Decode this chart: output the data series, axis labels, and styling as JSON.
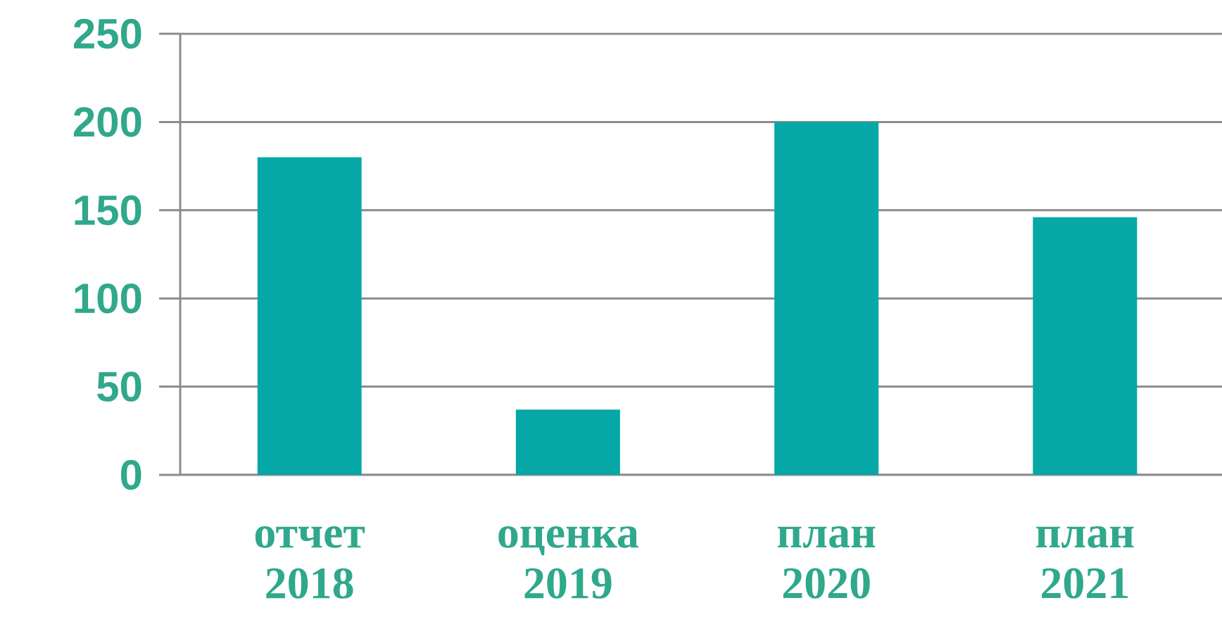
{
  "chart_data": {
    "type": "bar",
    "categories": [
      "отчет 2018",
      "оценка 2019",
      "план 2020",
      "план 2021"
    ],
    "values": [
      180,
      37,
      200,
      146
    ],
    "color": "#05a8a6",
    "ylim": [
      0,
      250
    ],
    "yticks": [
      0,
      50,
      100,
      150,
      200,
      250
    ],
    "grid": "y"
  }
}
